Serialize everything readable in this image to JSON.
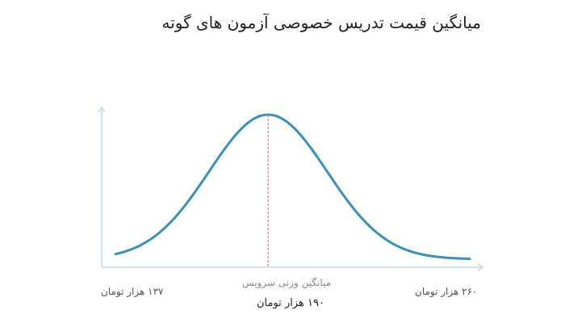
{
  "chart_data": {
    "type": "line",
    "title": "میانگین قیمت تدریس خصوصی آزمون های گوته",
    "xlim": [
      137,
      260
    ],
    "min_label": "۱۳۷ هزار تومان",
    "max_label": "۲۶۰ هزار تومان",
    "mean_value": 190,
    "mean_label": "میانگین وزنی سرویس",
    "mean_value_label": "۱۹۰ هزار تومان",
    "grid": false,
    "colors": {
      "curve": "#3a90b8",
      "mean_line": "#d05a7a",
      "axis": "#b9d3df"
    }
  }
}
